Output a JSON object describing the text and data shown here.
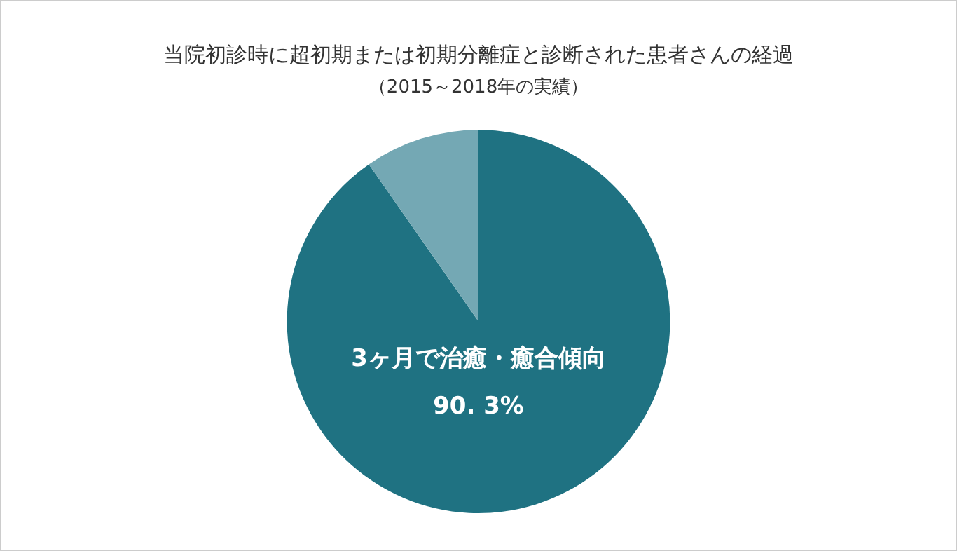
{
  "chart_data": {
    "type": "pie",
    "title": "当院初診時に超初期または初期分離症と診断された患者さんの経過",
    "subtitle": "（2015～2018年の実績）",
    "categories": [
      "3ヶ月で治癒・癒合傾向",
      null
    ],
    "values": [
      90.3,
      9.7
    ],
    "colors": [
      "#1f7282",
      "#74a8b4"
    ],
    "value_labels": [
      "90. 3%",
      null
    ],
    "legend": false
  }
}
